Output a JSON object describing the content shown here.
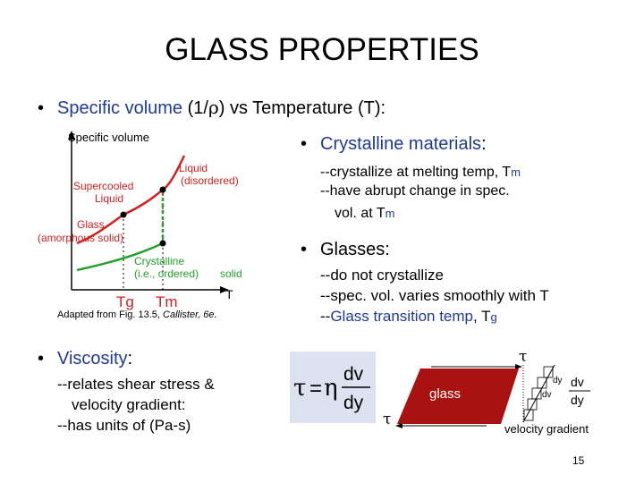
{
  "slide": {
    "title": "GLASS PROPERTIES",
    "page_number": "15"
  },
  "bullet_specific_volume": {
    "label": "Specific volume",
    "rest_prefix": " (1/",
    "rho": "ρ",
    "rest_suffix": ") vs Temperature (T):"
  },
  "graph": {
    "ylabel": "Specific volume",
    "xlabel_T": "T",
    "tick_Tg": "Tg",
    "tick_Tm": "Tm",
    "label_liquid_1": "Liquid",
    "label_liquid_2": "(disordered)",
    "label_supercooled_1": "Supercooled",
    "label_supercooled_2": "Liquid",
    "label_glass_1": "Glass",
    "label_glass_2": "(amorphous solid)",
    "label_crystalline_1": "Crystalline",
    "label_crystalline_2": "(i.e., ordered)",
    "label_solid": "solid",
    "colors": {
      "liquid": "#cc2222",
      "crystalline": "#22a02a",
      "glass": "#cc2222"
    },
    "caption_prefix": "Adapted from Fig. 13.5, ",
    "caption_italic": "Callister, 6e."
  },
  "crystalline": {
    "heading": "Crystalline materials",
    "colon": ":",
    "line1_prefix": "--crystallize at melting temp, T",
    "line1_sub": "m",
    "line2": "--have abrupt change in spec.",
    "line3_prefix": "vol. at T",
    "line3_sub": "m"
  },
  "glasses": {
    "heading": "Glasses:",
    "line1": "--do not crystallize",
    "line2": "--spec. vol. varies smoothly with T",
    "line3_dash": "--",
    "line3_blue": "Glass transition temp",
    "line3_mid": ", T",
    "line3_sub": "g"
  },
  "viscosity": {
    "heading": "Viscosity",
    "colon": ":",
    "line1": "--relates shear stress &",
    "line2": "velocity gradient:",
    "line3": "--has units of (Pa-s)"
  },
  "equation": {
    "tau": "τ",
    "equals": "=",
    "eta": "η",
    "numerator": "dv",
    "denominator": "dy"
  },
  "shear_figure": {
    "tau_top": "τ",
    "tau_bottom": "τ",
    "glass_label": "glass",
    "dy_label": "dy",
    "dv_label": "dv",
    "frac_num": "dv",
    "frac_den": "dy",
    "velocity_gradient": "velocity gradient",
    "glass_color": "#aa1111"
  }
}
